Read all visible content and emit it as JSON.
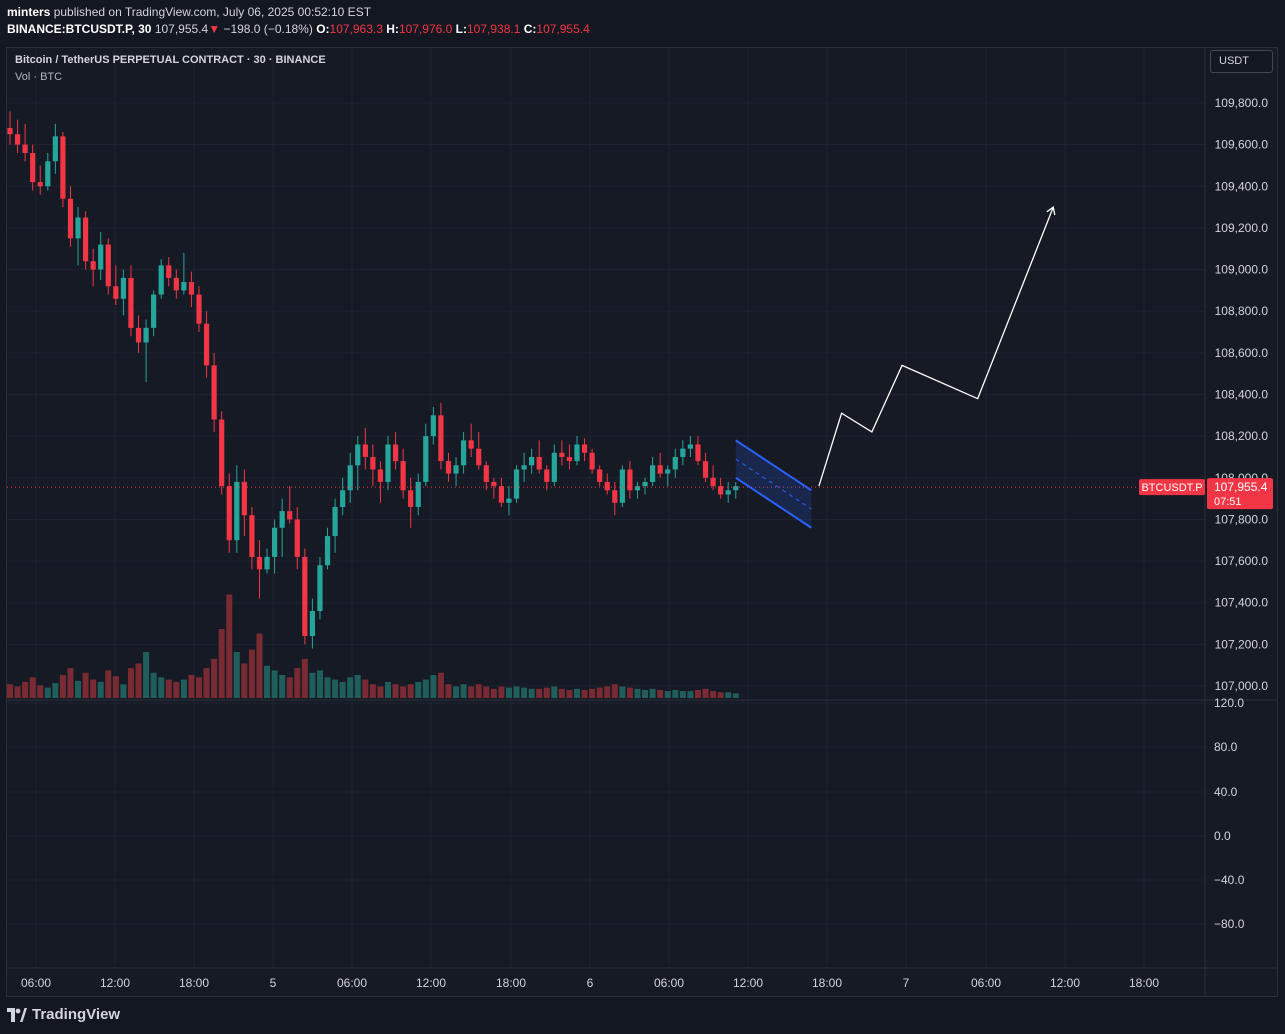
{
  "header": {
    "publisher": "minters",
    "published_text": "published on TradingView.com, July 06, 2025 00:52:10 EST",
    "symbol": "BINANCE:BTCUSDT.P, 30",
    "last_price": "107,955.4",
    "change_arrow": "▼",
    "change": "−198.0 (−0.18%)",
    "o_label": "O:",
    "o_value": "107,963.3",
    "h_label": "H:",
    "h_value": "107,976.0",
    "l_label": "L:",
    "l_value": "107,938.1",
    "c_label": "C:",
    "c_value": "107,955.4"
  },
  "legend": {
    "title": "Bitcoin / TetherUS PERPETUAL CONTRACT · 30 · BINANCE",
    "volume": "Vol · BTC"
  },
  "currency_button": "USDT",
  "price_badge": {
    "symbol": "BTCUSDT.P",
    "price": "107,955.4",
    "countdown": "07:51"
  },
  "footer": {
    "brand": "TradingView"
  },
  "colors": {
    "up": "#26a69a",
    "down": "#f23645",
    "background": "#161a25",
    "grid": "#1f2330",
    "drawing": "#ffffff",
    "channel": "#2962ff"
  },
  "chart_data": {
    "type": "candlestick",
    "timeframe": "30",
    "price_axis": {
      "ticks": [
        "109,800.0",
        "109,600.0",
        "109,400.0",
        "109,200.0",
        "109,000.0",
        "108,800.0",
        "108,600.0",
        "108,400.0",
        "108,200.0",
        "108,000.0",
        "107,800.0",
        "107,600.0",
        "107,400.0",
        "107,200.0",
        "107,000.0"
      ],
      "range": [
        106950,
        109920
      ]
    },
    "volume_axis": {
      "ticks": [
        "120.0",
        "80.0",
        "40.0",
        "0.0",
        "−40.0",
        "−80.0"
      ]
    },
    "time_axis": {
      "ticks": [
        "06:00",
        "12:00",
        "18:00",
        "5",
        "06:00",
        "12:00",
        "18:00",
        "6",
        "06:00",
        "12:00",
        "18:00",
        "7",
        "06:00",
        "12:00",
        "18:00"
      ]
    },
    "last_price_line": 107955.4,
    "candles": [
      [
        109680,
        109760,
        109600,
        109650,
        12
      ],
      [
        109650,
        109720,
        109560,
        109600,
        10
      ],
      [
        109600,
        109700,
        109520,
        109560,
        14
      ],
      [
        109560,
        109600,
        109380,
        109420,
        18
      ],
      [
        109420,
        109500,
        109360,
        109400,
        11
      ],
      [
        109400,
        109560,
        109380,
        109520,
        9
      ],
      [
        109520,
        109700,
        109460,
        109640,
        13
      ],
      [
        109640,
        109660,
        109300,
        109340,
        20
      ],
      [
        109340,
        109400,
        109110,
        109150,
        26
      ],
      [
        109150,
        109300,
        109020,
        109250,
        15
      ],
      [
        109250,
        109280,
        109000,
        109040,
        22
      ],
      [
        109040,
        109100,
        108920,
        109000,
        16
      ],
      [
        109000,
        109180,
        108950,
        109120,
        14
      ],
      [
        109120,
        109150,
        108880,
        108920,
        24
      ],
      [
        108920,
        109020,
        108830,
        108860,
        19
      ],
      [
        108860,
        109000,
        108780,
        108960,
        12
      ],
      [
        108960,
        109020,
        108680,
        108720,
        26
      ],
      [
        108720,
        108780,
        108600,
        108650,
        30
      ],
      [
        108650,
        108760,
        108460,
        108720,
        40
      ],
      [
        108720,
        108900,
        108680,
        108880,
        22
      ],
      [
        108880,
        109050,
        108860,
        109020,
        18
      ],
      [
        109020,
        109060,
        108920,
        108960,
        16
      ],
      [
        108960,
        109000,
        108860,
        108900,
        14
      ],
      [
        108900,
        109080,
        108880,
        108940,
        16
      ],
      [
        108940,
        108990,
        108820,
        108880,
        20
      ],
      [
        108880,
        108920,
        108700,
        108740,
        18
      ],
      [
        108740,
        108800,
        108480,
        108540,
        26
      ],
      [
        108540,
        108600,
        108220,
        108280,
        34
      ],
      [
        108280,
        108320,
        107920,
        107960,
        60
      ],
      [
        107960,
        108020,
        107640,
        107700,
        90
      ],
      [
        107700,
        108060,
        107640,
        107980,
        40
      ],
      [
        107980,
        108040,
        107720,
        107820,
        30
      ],
      [
        107820,
        107860,
        107560,
        107620,
        42
      ],
      [
        107620,
        107700,
        107420,
        107560,
        56
      ],
      [
        107560,
        107660,
        107540,
        107620,
        28
      ],
      [
        107620,
        107800,
        107540,
        107760,
        24
      ],
      [
        107760,
        107900,
        107620,
        107840,
        20
      ],
      [
        107840,
        107960,
        107780,
        107800,
        18
      ],
      [
        107800,
        107860,
        107560,
        107620,
        26
      ],
      [
        107620,
        107660,
        107200,
        107240,
        34
      ],
      [
        107240,
        107420,
        107180,
        107360,
        22
      ],
      [
        107360,
        107620,
        107320,
        107580,
        24
      ],
      [
        107580,
        107760,
        107560,
        107720,
        18
      ],
      [
        107720,
        107900,
        107640,
        107860,
        16
      ],
      [
        107860,
        108000,
        107820,
        107940,
        14
      ],
      [
        107940,
        108120,
        107880,
        108060,
        18
      ],
      [
        108060,
        108200,
        107940,
        108160,
        20
      ],
      [
        108160,
        108240,
        108040,
        108100,
        16
      ],
      [
        108100,
        108160,
        107960,
        108040,
        12
      ],
      [
        108040,
        108080,
        107880,
        107980,
        10
      ],
      [
        107980,
        108200,
        107940,
        108160,
        14
      ],
      [
        108160,
        108220,
        108040,
        108080,
        12
      ],
      [
        108080,
        108140,
        107900,
        107940,
        10
      ],
      [
        107940,
        108000,
        107760,
        107860,
        12
      ],
      [
        107860,
        108020,
        107820,
        107980,
        14
      ],
      [
        107980,
        108260,
        107960,
        108200,
        16
      ],
      [
        108200,
        108340,
        108160,
        108300,
        20
      ],
      [
        108300,
        108360,
        108040,
        108080,
        22
      ],
      [
        108080,
        108120,
        107980,
        108020,
        12
      ],
      [
        108020,
        108100,
        107960,
        108060,
        10
      ],
      [
        108060,
        108220,
        108020,
        108180,
        12
      ],
      [
        108180,
        108260,
        108100,
        108140,
        10
      ],
      [
        108140,
        108220,
        108040,
        108060,
        12
      ],
      [
        108060,
        108080,
        107940,
        107980,
        10
      ],
      [
        107980,
        108000,
        107900,
        107960,
        8
      ],
      [
        107960,
        108000,
        107860,
        107880,
        10
      ],
      [
        107880,
        107960,
        107820,
        107900,
        9
      ],
      [
        107900,
        108060,
        107880,
        108040,
        10
      ],
      [
        108040,
        108120,
        107980,
        108060,
        9
      ],
      [
        108060,
        108140,
        108020,
        108100,
        8
      ],
      [
        108100,
        108180,
        108020,
        108040,
        8
      ],
      [
        108040,
        108060,
        107940,
        107980,
        9
      ],
      [
        107980,
        108160,
        107960,
        108120,
        10
      ],
      [
        108120,
        108180,
        108060,
        108100,
        8
      ],
      [
        108100,
        108160,
        108040,
        108080,
        7
      ],
      [
        108080,
        108200,
        108060,
        108160,
        8
      ],
      [
        108160,
        108190,
        108080,
        108120,
        7
      ],
      [
        108120,
        108140,
        108020,
        108040,
        8
      ],
      [
        108040,
        108060,
        107960,
        107980,
        9
      ],
      [
        107980,
        108020,
        107920,
        107940,
        10
      ],
      [
        107940,
        107980,
        107820,
        107880,
        12
      ],
      [
        107880,
        108060,
        107860,
        108040,
        10
      ],
      [
        108040,
        108080,
        107900,
        107940,
        9
      ],
      [
        107940,
        107980,
        107900,
        107960,
        8
      ],
      [
        107960,
        108000,
        107920,
        107980,
        7
      ],
      [
        107980,
        108100,
        107960,
        108060,
        8
      ],
      [
        108060,
        108120,
        108000,
        108020,
        7
      ],
      [
        108020,
        108060,
        107960,
        108040,
        6
      ],
      [
        108040,
        108140,
        108000,
        108100,
        7
      ],
      [
        108100,
        108180,
        108060,
        108140,
        6
      ],
      [
        108140,
        108200,
        108100,
        108160,
        6
      ],
      [
        108160,
        108200,
        108060,
        108080,
        7
      ],
      [
        108080,
        108120,
        107980,
        108000,
        8
      ],
      [
        108000,
        108060,
        107940,
        107960,
        6
      ],
      [
        107960,
        108000,
        107900,
        107920,
        5
      ],
      [
        107920,
        107980,
        107880,
        107940,
        5
      ],
      [
        107940,
        107980,
        107900,
        107960,
        4
      ]
    ],
    "annotations": {
      "descending_channel": {
        "upper": [
          [
            96,
            108180
          ],
          [
            106,
            107940
          ]
        ],
        "lower": [
          [
            96,
            108000
          ],
          [
            106,
            107760
          ]
        ],
        "midline_end": [
          106,
          107850
        ]
      },
      "projection_path": [
        [
          107,
          107960
        ],
        [
          110,
          108310
        ],
        [
          114,
          108220
        ],
        [
          118,
          108540
        ],
        [
          128,
          108380
        ],
        [
          138,
          109300
        ]
      ]
    }
  }
}
